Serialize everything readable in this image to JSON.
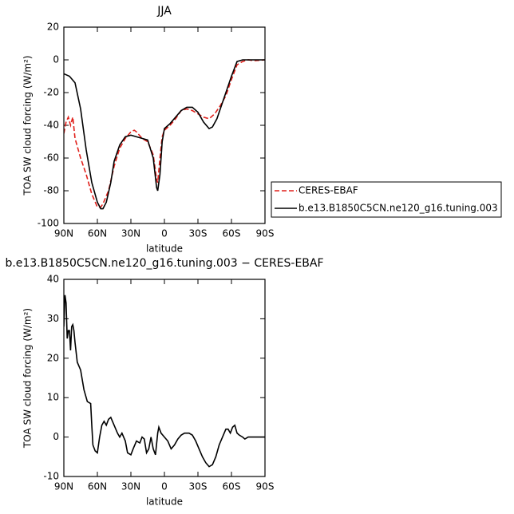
{
  "chart_data": [
    {
      "type": "line",
      "title": "JJA",
      "xlabel": "latitude",
      "ylabel": "TOA SW cloud forcing (W/m²)",
      "xlim": [
        90,
        -90
      ],
      "ylim": [
        -100,
        20
      ],
      "xticks": [
        {
          "value": 90,
          "label": "90N"
        },
        {
          "value": 60,
          "label": "60N"
        },
        {
          "value": 30,
          "label": "30N"
        },
        0,
        {
          "value": -30,
          "label": "30S"
        },
        {
          "value": -60,
          "label": "60S"
        },
        {
          "value": -90,
          "label": "90S"
        }
      ],
      "yticks": [
        -100,
        -80,
        -60,
        -40,
        -20,
        0,
        20
      ],
      "legend": "right",
      "series": [
        {
          "name": "CERES-EBAF",
          "color": "#e0201b",
          "dashed": true,
          "x": [
            90,
            88,
            86,
            84,
            82,
            80,
            75,
            70,
            65,
            60,
            57,
            55,
            50,
            45,
            40,
            35,
            30,
            27,
            25,
            20,
            15,
            10,
            7,
            6,
            4,
            2,
            0,
            -5,
            -10,
            -15,
            -20,
            -25,
            -30,
            -35,
            -40,
            -45,
            -50,
            -55,
            -60,
            -65,
            -70,
            -75,
            -80,
            -90
          ],
          "values": [
            -45,
            -38,
            -35,
            -40,
            -35,
            -48,
            -60,
            -70,
            -82,
            -90,
            -90,
            -88,
            -80,
            -65,
            -54,
            -48,
            -44,
            -43,
            -44,
            -48,
            -50,
            -58,
            -73,
            -75,
            -60,
            -47,
            -43,
            -40,
            -36,
            -31,
            -30,
            -31,
            -33,
            -35,
            -36,
            -33,
            -28,
            -22,
            -12,
            -3,
            -1,
            0,
            -0.5,
            0
          ]
        },
        {
          "name": "b.e13.B1850C5CN.ne120_g16.tuning.003",
          "color": "#000000",
          "dashed": false,
          "x": [
            90,
            85,
            80,
            75,
            70,
            65,
            60,
            57,
            55,
            52,
            48,
            45,
            40,
            35,
            30,
            25,
            20,
            15,
            10,
            7,
            6,
            4,
            2,
            0,
            -5,
            -10,
            -15,
            -20,
            -25,
            -30,
            -35,
            -40,
            -43,
            -47,
            -50,
            -55,
            -60,
            -65,
            -70,
            -75,
            -80,
            -90
          ],
          "values": [
            -8.5,
            -10,
            -14,
            -30,
            -55,
            -75,
            -87,
            -91,
            -91,
            -87,
            -75,
            -62,
            -52,
            -47,
            -46,
            -47,
            -48,
            -49,
            -60,
            -78,
            -80,
            -70,
            -50,
            -42,
            -39,
            -35,
            -31,
            -29,
            -29,
            -32,
            -38,
            -42,
            -41,
            -36,
            -30,
            -20,
            -10,
            -1,
            0,
            0,
            0,
            0
          ]
        }
      ]
    },
    {
      "type": "line",
      "title": "b.e13.B1850C5CN.ne120_g16.tuning.003 − CERES-EBAF",
      "xlabel": "latitude",
      "ylabel": "TOA SW cloud forcing (W/m²)",
      "xlim": [
        90,
        -90
      ],
      "ylim": [
        -10,
        40
      ],
      "xticks": [
        {
          "value": 90,
          "label": "90N"
        },
        {
          "value": 60,
          "label": "60N"
        },
        {
          "value": 30,
          "label": "30N"
        },
        0,
        {
          "value": -30,
          "label": "30S"
        },
        {
          "value": -60,
          "label": "60S"
        },
        {
          "value": -90,
          "label": "90S"
        }
      ],
      "yticks": [
        -10,
        0,
        10,
        20,
        30,
        40
      ],
      "series": [
        {
          "color": "#000000",
          "dashed": false,
          "x": [
            90,
            89,
            88,
            87,
            86,
            85,
            84,
            83,
            82,
            81,
            80,
            78,
            75,
            72,
            69,
            66,
            65,
            64,
            62,
            60,
            58,
            56,
            54,
            52,
            50,
            48,
            45,
            42,
            40,
            38,
            35,
            33,
            30,
            28,
            25,
            22,
            20,
            18,
            16,
            14,
            12,
            10,
            8,
            6,
            5,
            3,
            0,
            -3,
            -6,
            -9,
            -12,
            -15,
            -18,
            -22,
            -25,
            -28,
            -31,
            -34,
            -37,
            -40,
            -43,
            -46,
            -49,
            -52,
            -55,
            -57,
            -59,
            -61,
            -63,
            -65,
            -67,
            -70,
            -72,
            -75,
            -80,
            -90
          ],
          "values": [
            28,
            36,
            34,
            25,
            27,
            27,
            22,
            28,
            28.5,
            27,
            24,
            19,
            17,
            12,
            9,
            8.5,
            3,
            -2,
            -3.5,
            -4,
            0,
            3,
            4,
            3,
            4.5,
            5,
            3,
            1,
            0,
            1,
            -1,
            -4,
            -4.5,
            -3,
            -1,
            -1.5,
            0,
            -0.5,
            -4,
            -3,
            0,
            -3,
            -4.5,
            1,
            2.5,
            1,
            0,
            -1,
            -3,
            -2,
            -0.5,
            0.5,
            1,
            1,
            0.5,
            -1,
            -3,
            -5,
            -6.5,
            -7.5,
            -7,
            -5,
            -2,
            0,
            2,
            2,
            1,
            2.5,
            3,
            1,
            0.5,
            0,
            -0.5,
            0,
            0,
            0
          ]
        }
      ]
    }
  ]
}
